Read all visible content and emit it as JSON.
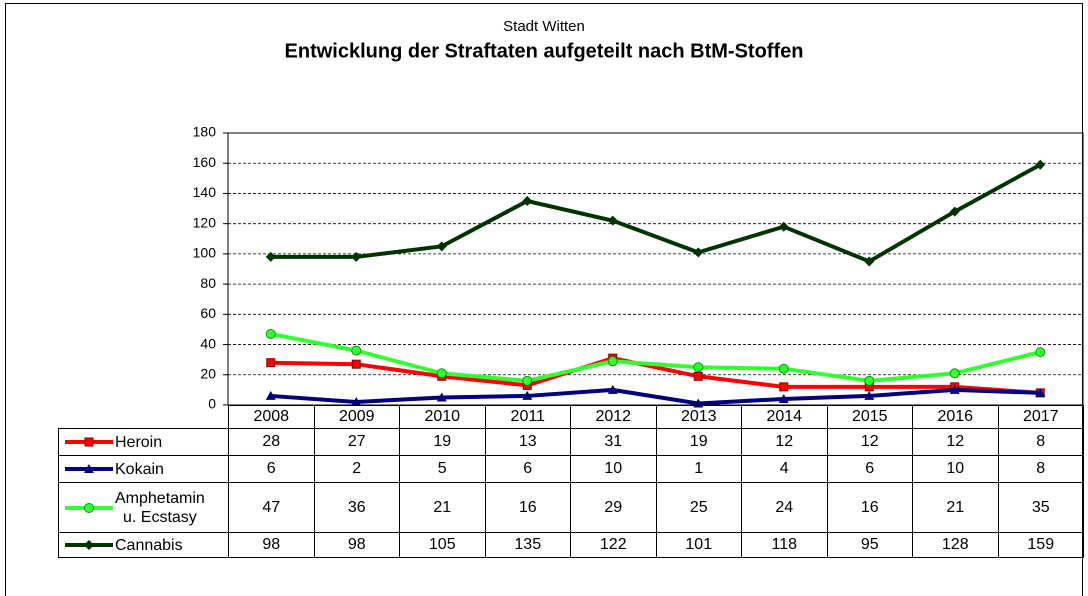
{
  "chart_data": {
    "type": "line",
    "subtitle": "Stadt Witten",
    "title": "Entwicklung der Straftaten aufgeteilt nach BtM-Stoffen",
    "categories": [
      "2008",
      "2009",
      "2010",
      "2011",
      "2012",
      "2013",
      "2014",
      "2015",
      "2016",
      "2017"
    ],
    "series": [
      {
        "name": "Heroin",
        "color": "#ff0000",
        "marker": "square",
        "values": [
          28,
          27,
          19,
          13,
          31,
          19,
          12,
          12,
          12,
          8
        ]
      },
      {
        "name": "Kokain",
        "color": "#000080",
        "marker": "triangle",
        "values": [
          6,
          2,
          5,
          6,
          10,
          1,
          4,
          6,
          10,
          8
        ]
      },
      {
        "name": "Amphetamin\nu. Ecstasy",
        "color": "#33ff33",
        "marker": "circle",
        "values": [
          47,
          36,
          21,
          16,
          29,
          25,
          24,
          16,
          21,
          35
        ]
      },
      {
        "name": "Cannabis",
        "color": "#003300",
        "marker": "diamond",
        "values": [
          98,
          98,
          105,
          135,
          122,
          101,
          118,
          95,
          128,
          159
        ]
      }
    ],
    "ylim": [
      0,
      180
    ],
    "yticks": [
      0,
      20,
      40,
      60,
      80,
      100,
      120,
      140,
      160,
      180
    ],
    "grid": true
  }
}
